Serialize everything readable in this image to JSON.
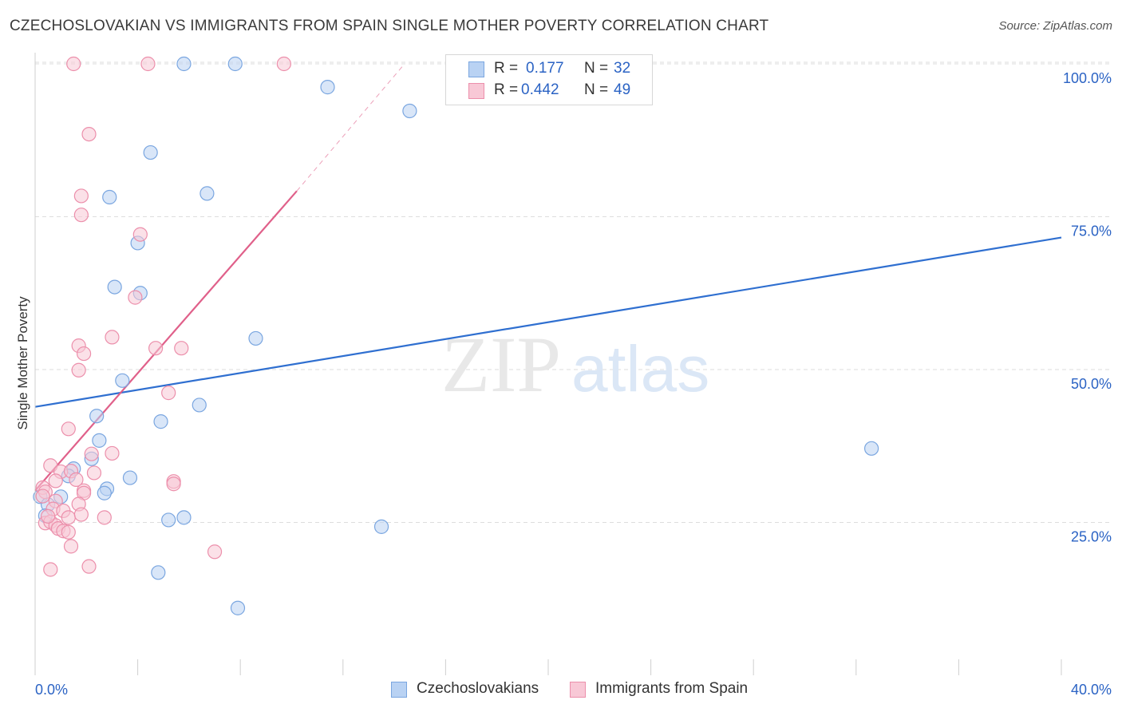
{
  "header": {
    "title": "CZECHOSLOVAKIAN VS IMMIGRANTS FROM SPAIN SINGLE MOTHER POVERTY CORRELATION CHART",
    "source": "Source: ZipAtlas.com"
  },
  "watermark": {
    "zip": "ZIP",
    "atlas": "atlas"
  },
  "legend": {
    "rows": [
      {
        "r_label": "R =",
        "r_value": "0.177",
        "n_label": "N =",
        "n_value": "32"
      },
      {
        "r_label": "R =",
        "r_value": "0.442",
        "n_label": "N =",
        "n_value": "49"
      }
    ]
  },
  "colors": {
    "blue_fill": "#b9d2f3",
    "blue_stroke": "#7aa6e0",
    "blue_line": "#2f6fd0",
    "pink_fill": "#f8c8d6",
    "pink_stroke": "#ec8fab",
    "pink_line": "#e0608a",
    "grid": "#dddddd",
    "tick_label": "#2b63c4"
  },
  "chart_data": {
    "type": "scatter",
    "title": "CZECHOSLOVAKIAN VS IMMIGRANTS FROM SPAIN SINGLE MOTHER POVERTY CORRELATION CHART",
    "xlabel": "",
    "ylabel": "Single Mother Poverty",
    "xlim": [
      0,
      40
    ],
    "ylim": [
      0,
      104
    ],
    "x_tick_labels": {
      "left": "0.0%",
      "right": "40.0%"
    },
    "y_ticks": [
      {
        "value": 25,
        "label": "25.0%"
      },
      {
        "value": 50,
        "label": "50.0%"
      },
      {
        "value": 75,
        "label": "75.0%"
      },
      {
        "value": 100,
        "label": "100.0%"
      }
    ],
    "grid": true,
    "legend_position": "top-center",
    "series": [
      {
        "name": "Czechoslovakians",
        "color": "#b9d2f3",
        "points": [
          [
            5.8,
            100
          ],
          [
            7.8,
            100
          ],
          [
            11.4,
            96.2
          ],
          [
            14.6,
            92.3
          ],
          [
            4.5,
            85.5
          ],
          [
            2.9,
            78.2
          ],
          [
            6.7,
            78.8
          ],
          [
            4.0,
            70.7
          ],
          [
            3.1,
            63.5
          ],
          [
            4.1,
            62.5
          ],
          [
            8.6,
            55.1
          ],
          [
            3.4,
            48.2
          ],
          [
            6.4,
            44.2
          ],
          [
            2.4,
            42.4
          ],
          [
            4.9,
            41.5
          ],
          [
            2.5,
            38.4
          ],
          [
            32.6,
            37.1
          ],
          [
            2.2,
            35.4
          ],
          [
            1.5,
            33.8
          ],
          [
            1.3,
            32.6
          ],
          [
            3.7,
            32.3
          ],
          [
            2.8,
            30.5
          ],
          [
            2.7,
            29.8
          ],
          [
            0.2,
            29.2
          ],
          [
            1.0,
            29.2
          ],
          [
            0.5,
            27.9
          ],
          [
            0.4,
            26.1
          ],
          [
            5.8,
            25.8
          ],
          [
            5.2,
            25.4
          ],
          [
            13.5,
            24.3
          ],
          [
            4.8,
            16.8
          ],
          [
            7.9,
            11.0
          ]
        ]
      },
      {
        "name": "Immigrants from Spain",
        "color": "#f8c8d6",
        "points": [
          [
            1.5,
            100
          ],
          [
            4.4,
            100
          ],
          [
            9.7,
            100
          ],
          [
            2.1,
            88.5
          ],
          [
            1.8,
            78.4
          ],
          [
            1.8,
            75.3
          ],
          [
            4.1,
            72.1
          ],
          [
            3.9,
            61.8
          ],
          [
            3.0,
            55.3
          ],
          [
            1.7,
            53.9
          ],
          [
            4.7,
            53.5
          ],
          [
            5.7,
            53.5
          ],
          [
            1.9,
            52.6
          ],
          [
            1.7,
            49.9
          ],
          [
            5.2,
            46.2
          ],
          [
            1.3,
            40.3
          ],
          [
            2.2,
            36.2
          ],
          [
            3.0,
            36.3
          ],
          [
            0.6,
            34.3
          ],
          [
            1.0,
            33.3
          ],
          [
            1.4,
            33.4
          ],
          [
            2.3,
            33.1
          ],
          [
            1.6,
            32.0
          ],
          [
            5.4,
            31.7
          ],
          [
            5.4,
            31.3
          ],
          [
            0.8,
            31.8
          ],
          [
            0.3,
            30.7
          ],
          [
            0.4,
            30.0
          ],
          [
            1.9,
            30.2
          ],
          [
            1.9,
            29.8
          ],
          [
            0.3,
            29.3
          ],
          [
            0.8,
            28.5
          ],
          [
            1.7,
            28.0
          ],
          [
            0.7,
            27.2
          ],
          [
            1.1,
            26.9
          ],
          [
            1.3,
            25.8
          ],
          [
            1.8,
            26.3
          ],
          [
            2.7,
            25.8
          ],
          [
            0.4,
            24.9
          ],
          [
            0.6,
            25.1
          ],
          [
            0.8,
            24.5
          ],
          [
            0.9,
            24.0
          ],
          [
            1.1,
            23.6
          ],
          [
            1.3,
            23.4
          ],
          [
            1.4,
            21.1
          ],
          [
            7.0,
            20.2
          ],
          [
            0.6,
            17.3
          ],
          [
            2.1,
            17.8
          ],
          [
            0.5,
            26.0
          ]
        ]
      }
    ],
    "trendlines": [
      {
        "series": "Czechoslovakians",
        "x": [
          0,
          40
        ],
        "y": [
          43.9,
          71.6
        ],
        "style": "solid"
      },
      {
        "series": "Immigrants from Spain",
        "x": [
          0,
          10.2
        ],
        "y": [
          30.2,
          79.2
        ],
        "style": "solid"
      },
      {
        "series": "Immigrants from Spain",
        "x": [
          10.2,
          14.4
        ],
        "y": [
          79.2,
          100
        ],
        "style": "dashed"
      }
    ]
  },
  "bottom_legend": {
    "items": [
      {
        "label": "Czechoslovakians"
      },
      {
        "label": "Immigrants from Spain"
      }
    ]
  }
}
